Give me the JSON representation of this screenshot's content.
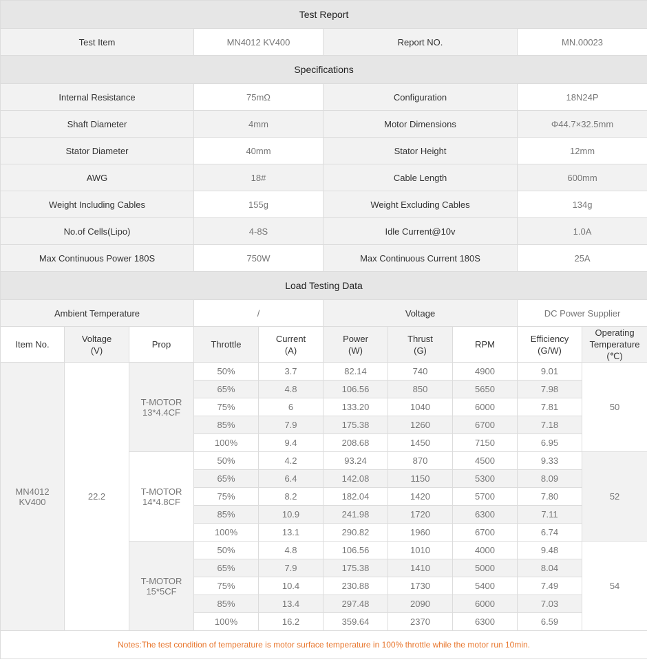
{
  "title": "Test Report",
  "test_item": {
    "label": "Test Item",
    "value": "MN4012 KV400",
    "report_label": "Report NO.",
    "report_value": "MN.00023"
  },
  "specifications": {
    "title": "Specifications",
    "rows": [
      [
        "Internal Resistance",
        "75mΩ",
        "Configuration",
        "18N24P"
      ],
      [
        "Shaft Diameter",
        "4mm",
        "Motor Dimensions",
        "Φ44.7×32.5mm"
      ],
      [
        "Stator Diameter",
        "40mm",
        "Stator Height",
        "12mm"
      ],
      [
        "AWG",
        "18#",
        "Cable Length",
        "600mm"
      ],
      [
        "Weight Including Cables",
        "155g",
        "Weight Excluding Cables",
        "134g"
      ],
      [
        "No.of Cells(Lipo)",
        "4-8S",
        "Idle Current@10v",
        "1.0A"
      ],
      [
        "Max Continuous Power 180S",
        "750W",
        "Max Continuous Current 180S",
        "25A"
      ]
    ]
  },
  "load": {
    "title": "Load Testing Data",
    "ambient_label": "Ambient Temperature",
    "ambient_value": "/",
    "voltage_label": "Voltage",
    "voltage_value": "DC Power Supplier",
    "headers": [
      [
        "Item No."
      ],
      [
        "Voltage",
        "(V)"
      ],
      [
        "Prop"
      ],
      [
        "Throttle"
      ],
      [
        "Current",
        "(A)"
      ],
      [
        "Power",
        "(W)"
      ],
      [
        "Thrust",
        "(G)"
      ],
      [
        "RPM"
      ],
      [
        "Efficiency",
        "(G/W)"
      ],
      [
        "Operating",
        "Temperature",
        "(℃)"
      ]
    ],
    "item": [
      "MN4012",
      "KV400"
    ],
    "voltage": "22.2",
    "groups": [
      {
        "prop": [
          "T-MOTOR",
          "13*4.4CF"
        ],
        "temp": "50",
        "rows": [
          [
            "50%",
            "3.7",
            "82.14",
            "740",
            "4900",
            "9.01"
          ],
          [
            "65%",
            "4.8",
            "106.56",
            "850",
            "5650",
            "7.98"
          ],
          [
            "75%",
            "6",
            "133.20",
            "1040",
            "6000",
            "7.81"
          ],
          [
            "85%",
            "7.9",
            "175.38",
            "1260",
            "6700",
            "7.18"
          ],
          [
            "100%",
            "9.4",
            "208.68",
            "1450",
            "7150",
            "6.95"
          ]
        ]
      },
      {
        "prop": [
          "T-MOTOR",
          "14*4.8CF"
        ],
        "temp": "52",
        "rows": [
          [
            "50%",
            "4.2",
            "93.24",
            "870",
            "4500",
            "9.33"
          ],
          [
            "65%",
            "6.4",
            "142.08",
            "1150",
            "5300",
            "8.09"
          ],
          [
            "75%",
            "8.2",
            "182.04",
            "1420",
            "5700",
            "7.80"
          ],
          [
            "85%",
            "10.9",
            "241.98",
            "1720",
            "6300",
            "7.11"
          ],
          [
            "100%",
            "13.1",
            "290.82",
            "1960",
            "6700",
            "6.74"
          ]
        ]
      },
      {
        "prop": [
          "T-MOTOR",
          "15*5CF"
        ],
        "temp": "54",
        "rows": [
          [
            "50%",
            "4.8",
            "106.56",
            "1010",
            "4000",
            "9.48"
          ],
          [
            "65%",
            "7.9",
            "175.38",
            "1410",
            "5000",
            "8.04"
          ],
          [
            "75%",
            "10.4",
            "230.88",
            "1730",
            "5400",
            "7.49"
          ],
          [
            "85%",
            "13.4",
            "297.48",
            "2090",
            "6000",
            "7.03"
          ],
          [
            "100%",
            "16.2",
            "359.64",
            "2370",
            "6300",
            "6.59"
          ]
        ]
      }
    ]
  },
  "notes": "Notes:The test condition of temperature is motor surface temperature in 100% throttle while the motor run 10min."
}
